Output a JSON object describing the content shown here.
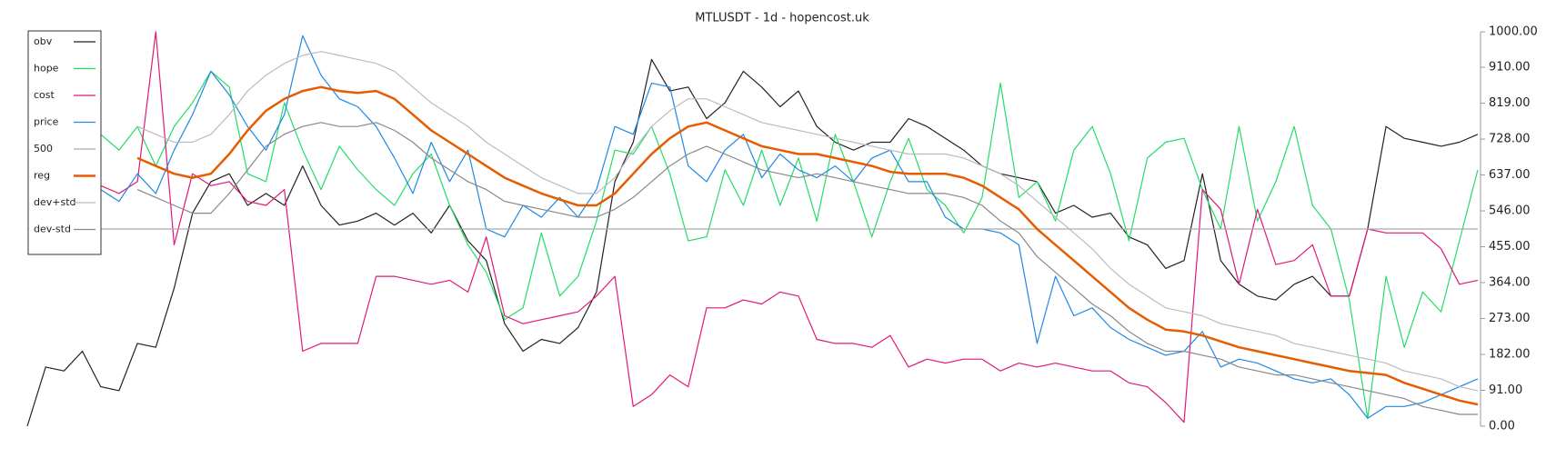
{
  "chart_data": {
    "type": "line",
    "title": "MTLUSDT - 1d - hopencost.uk",
    "ylim": [
      0,
      1000
    ],
    "yticks": [
      {
        "value": 0,
        "label": "0.00"
      },
      {
        "value": 91,
        "label": "91.00"
      },
      {
        "value": 182,
        "label": "182.00"
      },
      {
        "value": 273,
        "label": "273.00"
      },
      {
        "value": 364,
        "label": "364.00"
      },
      {
        "value": 455,
        "label": "455.00"
      },
      {
        "value": 546,
        "label": "546.00"
      },
      {
        "value": 637,
        "label": "637.00"
      },
      {
        "value": 728,
        "label": "728.00"
      },
      {
        "value": 819,
        "label": "819.00"
      },
      {
        "value": 910,
        "label": "910.00"
      },
      {
        "value": 1000,
        "label": "1000.00"
      }
    ],
    "legend": "top-left",
    "series": [
      {
        "name": "obv",
        "color": "#222222",
        "width": 1.2,
        "values": [
          0,
          150,
          140,
          190,
          100,
          90,
          210,
          200,
          350,
          540,
          620,
          640,
          560,
          590,
          560,
          660,
          560,
          510,
          520,
          540,
          510,
          540,
          490,
          560,
          470,
          420,
          260,
          190,
          220,
          210,
          250,
          340,
          620,
          720,
          930,
          850,
          860,
          780,
          820,
          900,
          860,
          810,
          850,
          760,
          720,
          700,
          720,
          720,
          780,
          760,
          730,
          700,
          660,
          640,
          630,
          620,
          540,
          560,
          530,
          540,
          480,
          460,
          400,
          420,
          640,
          420,
          360,
          330,
          320,
          360,
          380,
          330,
          330,
          500,
          760,
          730,
          720,
          710,
          720,
          740
        ]
      },
      {
        "name": "hope",
        "color": "#22dd66",
        "width": 1.2,
        "values": [
          null,
          null,
          null,
          null,
          740,
          700,
          760,
          660,
          760,
          820,
          900,
          860,
          640,
          620,
          820,
          700,
          600,
          710,
          650,
          600,
          560,
          640,
          690,
          560,
          460,
          390,
          270,
          300,
          490,
          330,
          380,
          520,
          700,
          690,
          760,
          640,
          470,
          480,
          650,
          560,
          700,
          560,
          680,
          520,
          740,
          620,
          480,
          620,
          730,
          600,
          560,
          490,
          580,
          870,
          580,
          620,
          520,
          700,
          760,
          640,
          470,
          680,
          720,
          730,
          600,
          500,
          760,
          520,
          620,
          760,
          560,
          500,
          320,
          20,
          380,
          200,
          340,
          290,
          470,
          650
        ]
      },
      {
        "name": "cost",
        "color": "#e0187a",
        "width": 1.2,
        "values": [
          null,
          null,
          null,
          null,
          610,
          590,
          620,
          1000,
          460,
          640,
          610,
          620,
          570,
          560,
          600,
          190,
          210,
          210,
          210,
          380,
          380,
          370,
          360,
          370,
          340,
          480,
          280,
          260,
          270,
          280,
          290,
          330,
          380,
          50,
          80,
          130,
          100,
          300,
          300,
          320,
          310,
          340,
          330,
          220,
          210,
          210,
          200,
          230,
          150,
          170,
          160,
          170,
          170,
          140,
          160,
          150,
          160,
          150,
          140,
          140,
          110,
          100,
          60,
          10,
          600,
          550,
          360,
          550,
          410,
          420,
          460,
          330,
          330,
          500,
          490,
          490,
          490,
          450,
          360,
          370
        ]
      },
      {
        "name": "price",
        "color": "#1e88e5",
        "width": 1.2,
        "values": [
          null,
          null,
          null,
          null,
          600,
          570,
          640,
          590,
          700,
          790,
          900,
          840,
          760,
          700,
          790,
          990,
          890,
          830,
          810,
          760,
          680,
          590,
          720,
          620,
          700,
          500,
          480,
          560,
          530,
          580,
          530,
          600,
          760,
          740,
          870,
          860,
          660,
          620,
          700,
          740,
          630,
          690,
          650,
          630,
          660,
          620,
          680,
          700,
          620,
          620,
          530,
          500,
          500,
          490,
          460,
          210,
          380,
          280,
          300,
          250,
          220,
          200,
          180,
          190,
          240,
          150,
          170,
          160,
          140,
          120,
          110,
          120,
          80,
          20,
          50,
          50,
          60,
          80,
          100,
          120
        ]
      },
      {
        "name": "500",
        "color": "#aaaaaa",
        "width": 1.2,
        "values": [
          500,
          500,
          500,
          500,
          500,
          500,
          500,
          500,
          500,
          500,
          500,
          500,
          500,
          500,
          500,
          500,
          500,
          500,
          500,
          500,
          500,
          500,
          500,
          500,
          500,
          500,
          500,
          500,
          500,
          500,
          500,
          500,
          500,
          500,
          500,
          500,
          500,
          500,
          500,
          500,
          500,
          500,
          500,
          500,
          500,
          500,
          500,
          500,
          500,
          500,
          500,
          500,
          500,
          500,
          500,
          500,
          500,
          500,
          500,
          500,
          500,
          500,
          500,
          500,
          500,
          500,
          500,
          500,
          500,
          500,
          500,
          500,
          500,
          500,
          500,
          500,
          500,
          500,
          500,
          500
        ]
      },
      {
        "name": "reg",
        "color": "#e65c00",
        "width": 2.5,
        "values": [
          null,
          null,
          null,
          null,
          null,
          null,
          680,
          660,
          640,
          630,
          640,
          690,
          750,
          800,
          830,
          850,
          860,
          850,
          845,
          850,
          830,
          790,
          750,
          720,
          690,
          660,
          630,
          610,
          590,
          575,
          560,
          560,
          590,
          640,
          690,
          730,
          760,
          770,
          750,
          730,
          710,
          700,
          690,
          690,
          680,
          670,
          660,
          645,
          640,
          640,
          640,
          630,
          610,
          580,
          550,
          500,
          460,
          420,
          380,
          340,
          300,
          270,
          245,
          240,
          230,
          215,
          200,
          190,
          180,
          170,
          160,
          150,
          140,
          135,
          130,
          110,
          95,
          80,
          65,
          55
        ]
      },
      {
        "name": "dev+std",
        "color": "#bbbbbb",
        "width": 1.2,
        "values": [
          null,
          null,
          null,
          null,
          null,
          null,
          760,
          740,
          720,
          720,
          740,
          790,
          850,
          890,
          920,
          940,
          950,
          940,
          930,
          920,
          900,
          860,
          820,
          790,
          760,
          720,
          690,
          660,
          630,
          610,
          590,
          590,
          630,
          700,
          760,
          800,
          830,
          830,
          810,
          790,
          770,
          760,
          750,
          740,
          730,
          720,
          710,
          700,
          690,
          690,
          690,
          680,
          660,
          640,
          610,
          570,
          530,
          490,
          450,
          400,
          360,
          330,
          300,
          290,
          280,
          260,
          250,
          240,
          230,
          210,
          200,
          190,
          180,
          170,
          160,
          140,
          130,
          120,
          100,
          90
        ]
      },
      {
        "name": "dev-std",
        "color": "#888888",
        "width": 1.2,
        "values": [
          null,
          null,
          null,
          null,
          null,
          null,
          600,
          580,
          560,
          540,
          540,
          590,
          650,
          710,
          740,
          760,
          770,
          760,
          760,
          770,
          750,
          720,
          680,
          650,
          620,
          600,
          570,
          560,
          550,
          540,
          530,
          530,
          550,
          580,
          620,
          660,
          690,
          710,
          690,
          670,
          650,
          640,
          630,
          640,
          630,
          620,
          610,
          600,
          590,
          590,
          590,
          580,
          560,
          520,
          490,
          430,
          390,
          350,
          310,
          280,
          240,
          210,
          190,
          190,
          180,
          170,
          150,
          140,
          130,
          130,
          120,
          110,
          100,
          90,
          80,
          70,
          50,
          40,
          30,
          30
        ]
      }
    ]
  }
}
